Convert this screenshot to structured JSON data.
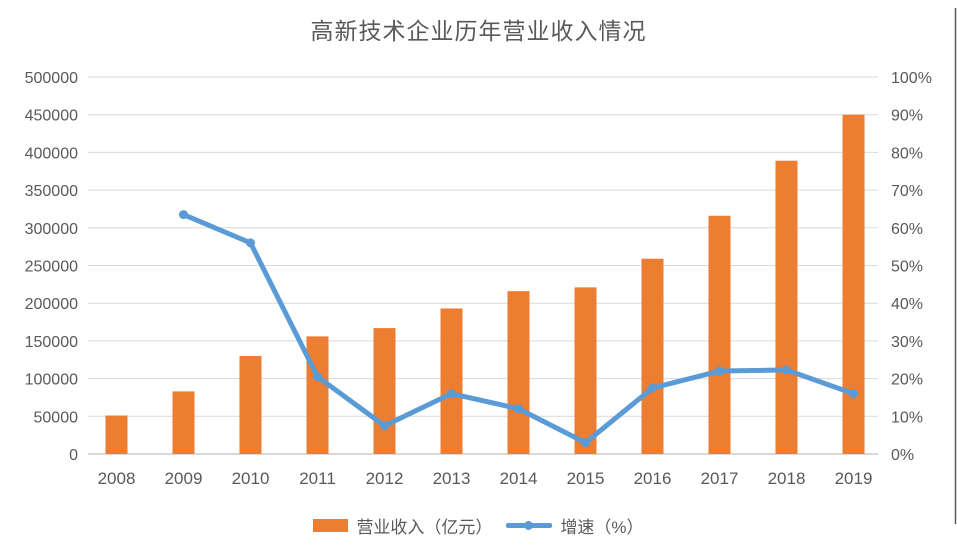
{
  "title": "高新技术企业历年营业收入情况",
  "colors": {
    "bar": "#ED7D31",
    "line": "#5B9BD5",
    "grid": "#D9D9D9",
    "axis_line": "#D9D9D9",
    "text": "#595959",
    "right_border": "#595959",
    "background": "#FFFFFF"
  },
  "legend": {
    "items": [
      {
        "label": "营业收入（亿元）",
        "type": "bar"
      },
      {
        "label": "增速（%）",
        "type": "line"
      }
    ]
  },
  "chart_data": {
    "type": "bar+line combo",
    "title": "高新技术企业历年营业收入情况",
    "categories": [
      "2008",
      "2009",
      "2010",
      "2011",
      "2012",
      "2013",
      "2014",
      "2015",
      "2016",
      "2017",
      "2018",
      "2019"
    ],
    "series": [
      {
        "name": "营业收入（亿元）",
        "type": "bar",
        "axis": "left",
        "values": [
          51000,
          83000,
          130000,
          156000,
          167000,
          193000,
          216000,
          221000,
          259000,
          316000,
          389000,
          450000
        ]
      },
      {
        "name": "增速（%）",
        "type": "line",
        "axis": "right",
        "values": [
          null,
          63.5,
          56,
          20.5,
          7.5,
          16,
          12,
          3,
          17.5,
          22,
          22.3,
          16
        ]
      }
    ],
    "left_axis": {
      "min": 0,
      "max": 500000,
      "step": 50000,
      "ticks": [
        "0",
        "50000",
        "100000",
        "150000",
        "200000",
        "250000",
        "300000",
        "350000",
        "400000",
        "450000",
        "500000"
      ]
    },
    "right_axis": {
      "min": 0,
      "max": 100,
      "step": 10,
      "unit": "%",
      "ticks": [
        "0%",
        "10%",
        "20%",
        "30%",
        "40%",
        "50%",
        "60%",
        "70%",
        "80%",
        "90%",
        "100%"
      ]
    },
    "grid": true,
    "legend_position": "bottom"
  }
}
